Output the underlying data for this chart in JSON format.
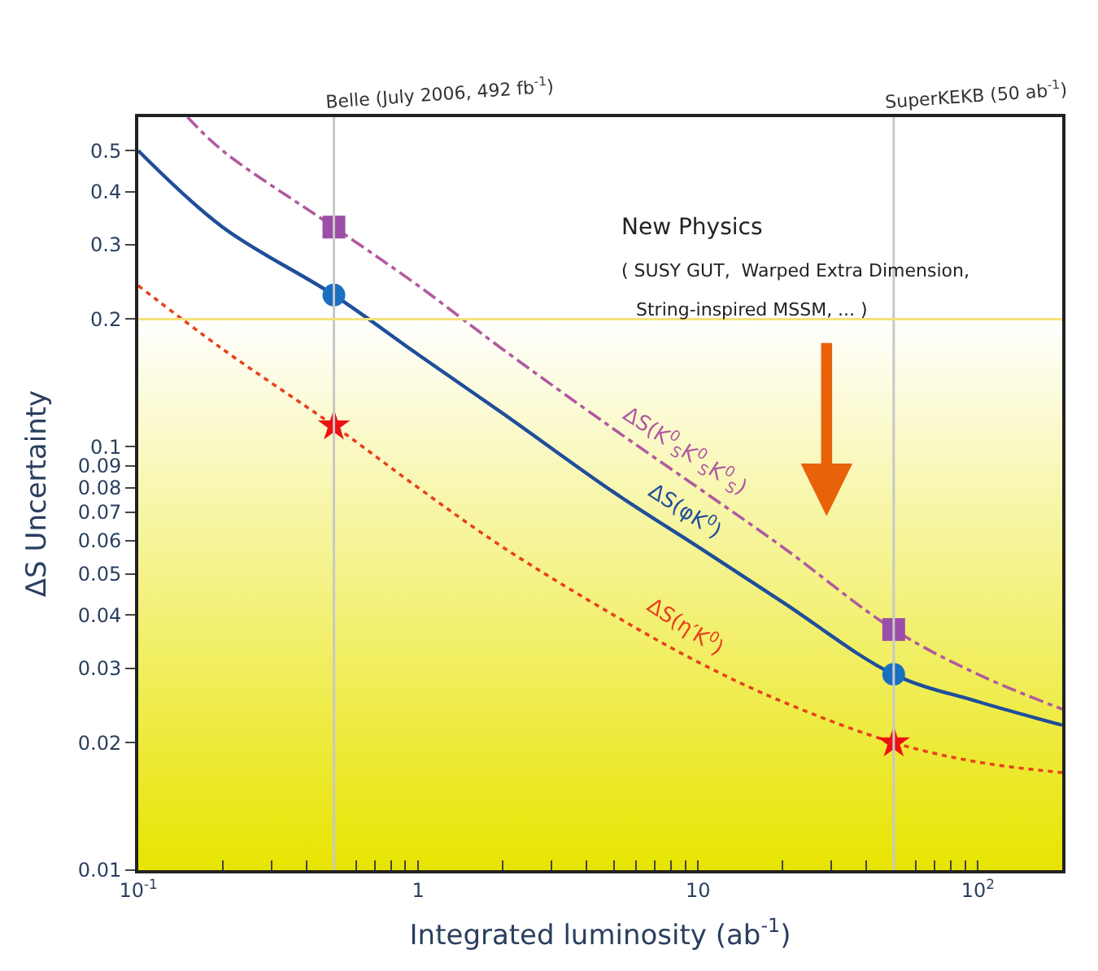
{
  "chart_data": {
    "type": "line",
    "xlabel": "Integrated luminosity (ab$^{-1}$)",
    "ylabel": "ΔS Uncertainty",
    "log": "xy",
    "xlim": [
      0.1,
      200
    ],
    "xticks": [
      {
        "value": 0.1,
        "label": "10$^{-1}$"
      },
      {
        "value": 0.2,
        "label": null
      },
      {
        "value": 0.3,
        "label": null
      },
      {
        "value": 0.4,
        "label": null
      },
      {
        "value": 0.5,
        "label": null
      },
      {
        "value": 0.6,
        "label": null
      },
      {
        "value": 0.7,
        "label": null
      },
      {
        "value": 0.8,
        "label": null
      },
      {
        "value": 0.9,
        "label": null
      },
      1,
      {
        "value": 2,
        "label": null
      },
      {
        "value": 3,
        "label": null
      },
      {
        "value": 4,
        "label": null
      },
      {
        "value": 5,
        "label": null
      },
      {
        "value": 6,
        "label": null
      },
      {
        "value": 7,
        "label": null
      },
      {
        "value": 8,
        "label": null
      },
      {
        "value": 9,
        "label": null
      },
      10,
      {
        "value": 20,
        "label": null
      },
      {
        "value": 30,
        "label": null
      },
      {
        "value": 40,
        "label": null
      },
      {
        "value": 50,
        "label": null
      },
      {
        "value": 60,
        "label": null
      },
      {
        "value": 70,
        "label": null
      },
      {
        "value": 80,
        "label": null
      },
      {
        "value": 90,
        "label": null
      },
      {
        "value": 100,
        "label": "10$^{2}$"
      }
    ],
    "ylim": [
      0.01,
      0.6
    ],
    "yticks": [
      0.01,
      0.02,
      0.03,
      0.04,
      0.05,
      0.06,
      0.07,
      0.08,
      0.09,
      0.1,
      0.2,
      0.3,
      0.4,
      0.5
    ],
    "series": [
      {
        "name": "ΔS(K$^{0}$$_{S}$K$^{0}$$_{S}$K$^{0}$$_{S}$)",
        "color": "#b05aa0",
        "line_style": "dashdot",
        "x": [
          0.15,
          0.2,
          0.5,
          1,
          2,
          5,
          10,
          20,
          50,
          100,
          200
        ],
        "values": [
          0.6,
          0.5,
          0.33,
          0.24,
          0.17,
          0.11,
          0.08,
          0.058,
          0.037,
          0.029,
          0.024
        ]
      },
      {
        "name": "ΔS(φK$^{0}$)",
        "color": "#1f4e9a",
        "line_style": "solid",
        "x": [
          0.1,
          0.2,
          0.5,
          1,
          2,
          5,
          10,
          20,
          50,
          100,
          200
        ],
        "values": [
          0.5,
          0.33,
          0.228,
          0.165,
          0.12,
          0.078,
          0.058,
          0.043,
          0.029,
          0.025,
          0.022
        ]
      },
      {
        "name": "ΔS(η′K$^{0}$)",
        "color": "#e8401c",
        "line_style": "dotted",
        "x": [
          0.1,
          0.2,
          0.5,
          1,
          2,
          5,
          10,
          20,
          50,
          100,
          200
        ],
        "values": [
          0.24,
          0.17,
          0.112,
          0.08,
          0.058,
          0.04,
          0.031,
          0.025,
          0.02,
          0.018,
          0.017
        ]
      },
      {
        "type": "scatter",
        "marker": "square",
        "color": "#9b4fa8",
        "x": [
          0.5,
          50
        ],
        "values": [
          0.33,
          0.037
        ]
      },
      {
        "type": "scatter",
        "marker": "circle",
        "color": "#1a6fc0",
        "x": [
          0.5,
          50
        ],
        "values": [
          0.228,
          0.029
        ]
      },
      {
        "type": "scatter",
        "marker": "star",
        "color": "#ee1111",
        "x": [
          0.5,
          50
        ],
        "values": [
          0.112,
          0.02
        ]
      }
    ],
    "ref_lines": [
      {
        "axis": "x",
        "value": 0.5,
        "label": "Belle (July 2006, 492 fb$^{-1}$)",
        "color": "#c8c8c8"
      },
      {
        "axis": "x",
        "value": 50,
        "label": "SuperKEKB (50 ab$^{-1}$)",
        "color": "#c8c8c8"
      },
      {
        "axis": "y",
        "value": 0.2,
        "color": "#f5e27a"
      }
    ],
    "bands": [
      {
        "axis": "y",
        "from": 0.01,
        "to": 0.2,
        "color": "#e8e400"
      }
    ],
    "annotations": [
      "New Physics",
      "( SUSY GUT,  Warped Extra Dimension,",
      "String-inspired MSSM, ... )"
    ]
  }
}
